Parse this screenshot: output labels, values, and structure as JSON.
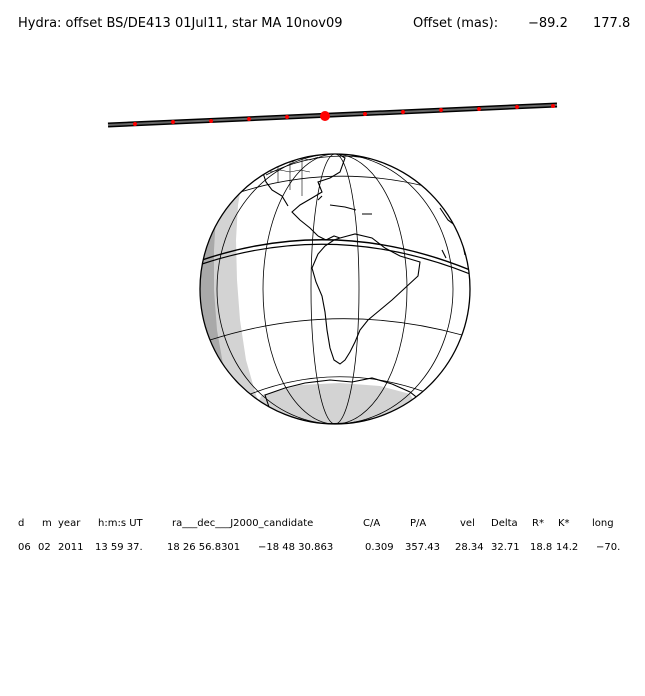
{
  "title": {
    "main": "Hydra: offset BS/DE413 01Jul11, star MA 10nov09",
    "offset_label": "Offset (mas):",
    "offset_x": "−89.2",
    "offset_y": "177.8"
  },
  "colors": {
    "path_line": "#333333",
    "path_dots": "#ff0000",
    "night_shade": "#aaaaaa",
    "twilight_shade": "#d3d3d3",
    "globe_fill": "#ffffff"
  },
  "table": {
    "headers": [
      "d",
      "m",
      "year",
      "h:m:s UT",
      "ra___dec___J2000_candidate",
      "C/A",
      "P/A",
      "vel",
      "Delta",
      "R*",
      "K*",
      "long"
    ],
    "values": [
      "06",
      "02",
      "2011",
      "13 59 37.",
      "18 26 56.8301",
      "−18 48 30.863",
      "0.309",
      "357.43",
      "28.34",
      "32.71",
      "18.8",
      "14.2",
      "−70."
    ]
  }
}
